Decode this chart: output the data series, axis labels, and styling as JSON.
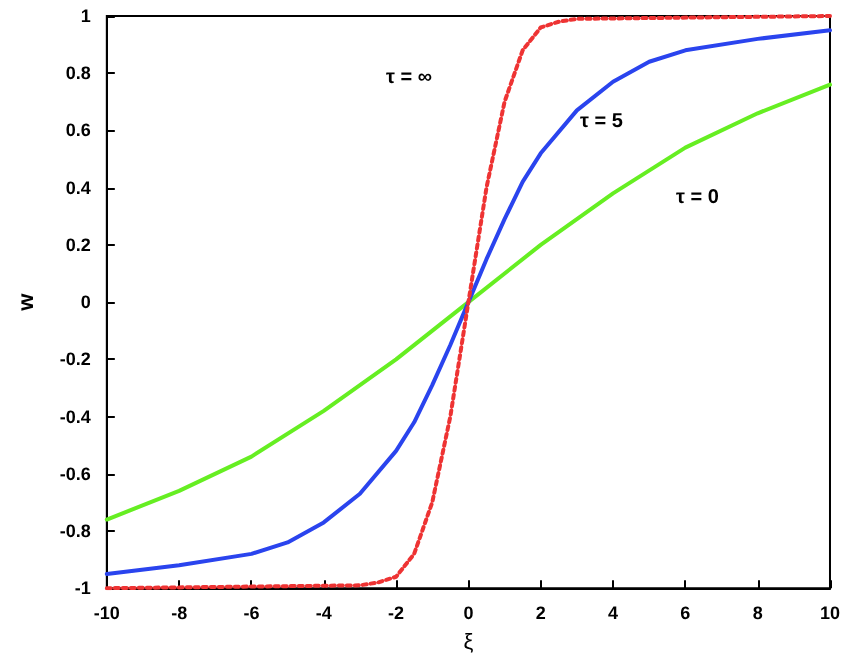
{
  "chart_data": {
    "type": "line",
    "xlabel": "ξ",
    "ylabel": "w",
    "xlim": [
      -10,
      10
    ],
    "ylim": [
      -1,
      1
    ],
    "xticks": [
      -10,
      -8,
      -6,
      -4,
      -2,
      0,
      2,
      4,
      6,
      8,
      10
    ],
    "yticks": [
      -1,
      -0.8,
      -0.6,
      -0.4,
      -0.2,
      0,
      0.2,
      0.4,
      0.6,
      0.8,
      1
    ],
    "marker": "none",
    "series": [
      {
        "color": "#66ee22",
        "line_style": "solid",
        "x": [
          -10,
          -8,
          -6,
          -4,
          -2,
          0,
          2,
          4,
          6,
          8,
          10
        ],
        "values": [
          -0.76,
          -0.66,
          -0.54,
          -0.38,
          -0.2,
          0,
          0.2,
          0.38,
          0.54,
          0.66,
          0.76
        ]
      },
      {
        "color": "#2a44ee",
        "line_style": "solid",
        "x": [
          -10,
          -8,
          -6,
          -5,
          -4,
          -3,
          -2,
          -1.5,
          -1,
          -0.5,
          0,
          0.5,
          1,
          1.5,
          2,
          3,
          4,
          5,
          6,
          8,
          10
        ],
        "values": [
          -0.95,
          -0.92,
          -0.88,
          -0.84,
          -0.77,
          -0.67,
          -0.52,
          -0.42,
          -0.29,
          -0.15,
          0,
          0.15,
          0.29,
          0.42,
          0.52,
          0.67,
          0.77,
          0.84,
          0.88,
          0.92,
          0.95
        ]
      },
      {
        "color": "#ee3333",
        "line_style": "dotted",
        "x": [
          -10,
          -3,
          -2.5,
          -2,
          -1.5,
          -1,
          -0.5,
          0,
          0.5,
          1,
          1.5,
          2,
          2.5,
          3,
          10
        ],
        "values": [
          -1,
          -0.99,
          -0.98,
          -0.96,
          -0.88,
          -0.7,
          -0.4,
          0,
          0.4,
          0.7,
          0.88,
          0.96,
          0.98,
          0.99,
          1
        ]
      }
    ],
    "annotations": [
      "τ = ∞",
      "τ = 5",
      "τ = 0"
    ]
  }
}
